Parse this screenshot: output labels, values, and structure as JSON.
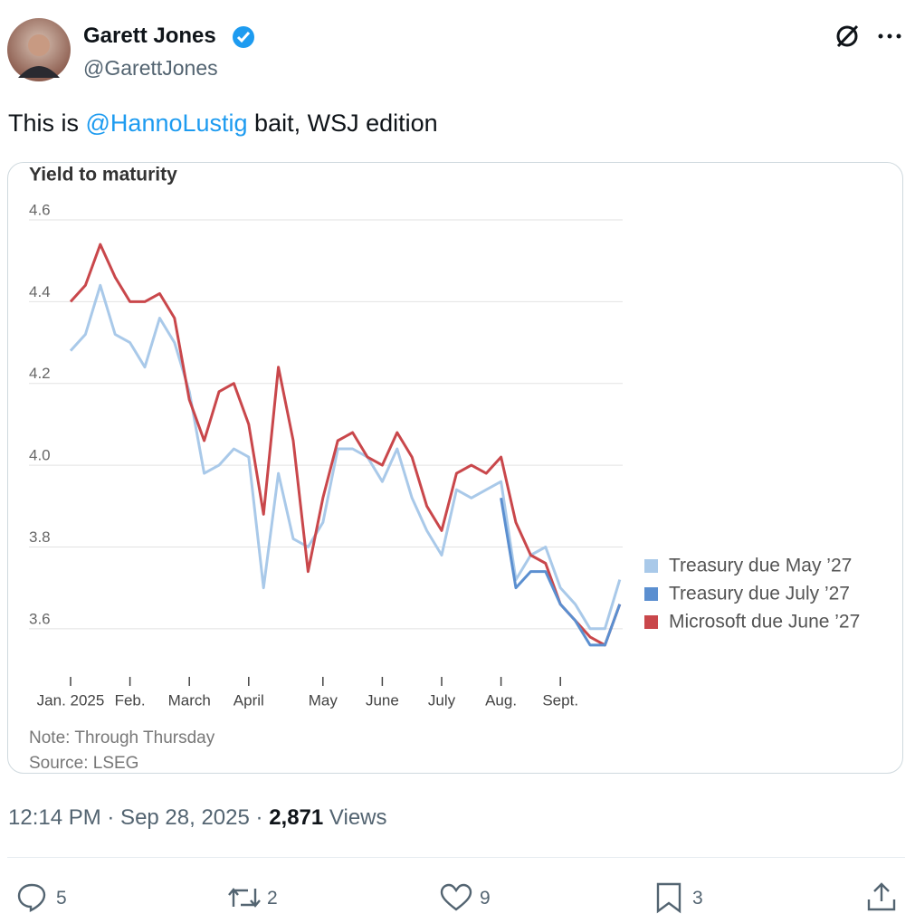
{
  "author": {
    "name": "Garett Jones",
    "handle": "@GarettJones"
  },
  "tweet": {
    "text_parts": [
      "This is ",
      "@HannoLustig",
      " bait, WSJ edition"
    ]
  },
  "chart_data": {
    "type": "line",
    "title": "Yield to maturity",
    "categories": [
      "Jan. 2025",
      null,
      null,
      null,
      "Feb.",
      null,
      null,
      null,
      "March",
      null,
      null,
      null,
      "April",
      null,
      null,
      null,
      null,
      "May",
      null,
      null,
      null,
      "June",
      null,
      null,
      null,
      "July",
      null,
      null,
      null,
      "Aug.",
      null,
      null,
      null,
      "Sept.",
      null,
      null,
      null,
      null
    ],
    "series": [
      {
        "name": "Treasury due May ’27",
        "color": "#a9c9e9",
        "values": [
          4.28,
          4.32,
          4.44,
          4.32,
          4.3,
          4.24,
          4.36,
          4.3,
          4.18,
          3.98,
          4.0,
          4.04,
          4.02,
          3.7,
          3.98,
          3.82,
          3.8,
          3.86,
          4.04,
          4.04,
          4.02,
          3.96,
          4.04,
          3.92,
          3.84,
          3.78,
          3.94,
          3.92,
          3.94,
          3.96,
          3.72,
          3.78,
          3.8,
          3.7,
          3.66,
          3.6,
          3.6,
          3.72
        ]
      },
      {
        "name": "Treasury due July ’27",
        "color": "#5b8fd0",
        "values": [
          null,
          null,
          null,
          null,
          null,
          null,
          null,
          null,
          null,
          null,
          null,
          null,
          null,
          null,
          null,
          null,
          null,
          null,
          null,
          null,
          null,
          null,
          null,
          null,
          null,
          null,
          null,
          null,
          null,
          3.92,
          3.7,
          3.74,
          3.74,
          3.66,
          3.62,
          3.56,
          3.56,
          3.66
        ]
      },
      {
        "name": "Microsoft due June ’27",
        "color": "#c9474b",
        "values": [
          4.4,
          4.44,
          4.54,
          4.46,
          4.4,
          4.4,
          4.42,
          4.36,
          4.16,
          4.06,
          4.18,
          4.2,
          4.1,
          3.88,
          4.24,
          4.06,
          3.74,
          3.92,
          4.06,
          4.08,
          4.02,
          4.0,
          4.08,
          4.02,
          3.9,
          3.84,
          3.98,
          4.0,
          3.98,
          4.02,
          3.86,
          3.78,
          3.76,
          3.66,
          3.62,
          3.58,
          3.56,
          3.66
        ]
      }
    ],
    "ylim": [
      3.5,
      4.62
    ],
    "yticks": [
      {
        "value": 3.6,
        "label": "3.6"
      },
      {
        "value": 3.8,
        "label": "3.8"
      },
      {
        "value": 4.0,
        "label": "4.0"
      },
      {
        "value": 4.2,
        "label": "4.2"
      },
      {
        "value": 4.4,
        "label": "4.4"
      },
      {
        "value": 4.6,
        "label": "4.6"
      }
    ],
    "grid": true,
    "note": "Note: Through Thursday",
    "source": "Source: LSEG"
  },
  "meta": {
    "timestamp": "12:14 PM · Sep 28, 2025 ·",
    "views_count": "2,871",
    "views_label": "Views"
  },
  "actions": {
    "replies": "5",
    "reposts": "2",
    "likes": "9",
    "bookmarks": "3"
  }
}
